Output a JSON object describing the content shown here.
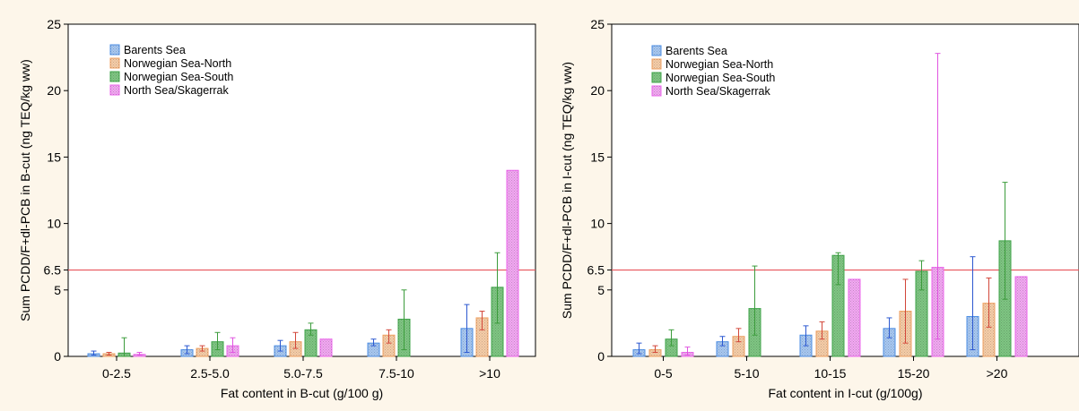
{
  "colors": {
    "background": "#fdf6ea",
    "plot_background": "#ffffff",
    "reference_line": "#e8545a",
    "series": [
      "#4d8fe6",
      "#f0a060",
      "#3fa54a",
      "#ee66ee"
    ],
    "series_fill": [
      "#a7c8f2",
      "#f6cda8",
      "#7fc683",
      "#f2a8f2"
    ],
    "error_bars": [
      "#2c58d0",
      "#d2473a",
      "#3c9c3c",
      "#e055e0"
    ]
  },
  "legend": [
    "Barents Sea",
    "Norwegian Sea-North",
    "Norwegian Sea-South",
    "North Sea/Skagerrak"
  ],
  "chart_data": [
    {
      "type": "bar",
      "xlabel": "Fat content in B-cut (g/100 g)",
      "ylabel": "Sum PCDD/F+dl-PCB in B-cut (ng TEQ/kg ww)",
      "ylim": [
        0,
        25
      ],
      "yticks": [
        "0",
        "5",
        "6.5",
        "10",
        "15",
        "20",
        "25"
      ],
      "reference_line": 6.5,
      "legend_position": "top-left",
      "grid": false,
      "categories": [
        "0-2.5",
        "2.5-5.0",
        "5.0-7.5",
        "7.5-10",
        ">10"
      ],
      "series": [
        {
          "name": "Barents Sea",
          "values": [
            0.2,
            0.5,
            0.8,
            1.0,
            2.1
          ],
          "error_low": [
            0.1,
            0.2,
            0.4,
            0.8,
            0.3
          ],
          "error_high": [
            0.4,
            0.8,
            1.2,
            1.3,
            3.9
          ]
        },
        {
          "name": "Norwegian Sea-North",
          "values": [
            0.2,
            0.6,
            1.1,
            1.6,
            2.9
          ],
          "error_low": [
            0.1,
            0.4,
            0.6,
            1.0,
            2.0
          ],
          "error_high": [
            0.3,
            0.8,
            1.8,
            2.0,
            3.4
          ]
        },
        {
          "name": "Norwegian Sea-South",
          "values": [
            0.25,
            1.1,
            2.0,
            2.8,
            5.2
          ],
          "error_low": [
            0.0,
            0.5,
            1.6,
            0.5,
            2.5
          ],
          "error_high": [
            1.4,
            1.8,
            2.5,
            5.0,
            7.8
          ]
        },
        {
          "name": "North Sea/Skagerrak",
          "values": [
            0.15,
            0.8,
            1.3,
            null,
            14.0
          ],
          "error_low": [
            0.1,
            0.3,
            1.3,
            null,
            14.0
          ],
          "error_high": [
            0.3,
            1.4,
            1.3,
            null,
            14.0
          ]
        }
      ]
    },
    {
      "type": "bar",
      "xlabel": "Fat content in I-cut (g/100g)",
      "ylabel": "Sum PCDD/F+dl-PCB in I-cut (ng TEQ/kg ww)",
      "ylim": [
        0,
        25
      ],
      "yticks": [
        "0",
        "5",
        "6.5",
        "10",
        "15",
        "20",
        "25"
      ],
      "reference_line": 6.5,
      "legend_position": "top-left",
      "grid": false,
      "categories": [
        "0-5",
        "5-10",
        "10-15",
        "15-20",
        ">20"
      ],
      "series": [
        {
          "name": "Barents Sea",
          "values": [
            0.5,
            1.1,
            1.6,
            2.1,
            3.0
          ],
          "error_low": [
            0.2,
            0.8,
            0.8,
            1.4,
            0.5
          ],
          "error_high": [
            1.0,
            1.5,
            2.3,
            2.9,
            7.5
          ]
        },
        {
          "name": "Norwegian Sea-North",
          "values": [
            0.5,
            1.5,
            1.9,
            3.4,
            4.0
          ],
          "error_low": [
            0.3,
            1.1,
            1.3,
            1.0,
            2.2
          ],
          "error_high": [
            0.8,
            2.1,
            2.6,
            5.8,
            5.9
          ]
        },
        {
          "name": "Norwegian Sea-South",
          "values": [
            1.3,
            3.6,
            7.6,
            6.4,
            8.7
          ],
          "error_low": [
            0.8,
            1.6,
            5.4,
            5.0,
            4.3
          ],
          "error_high": [
            2.0,
            6.8,
            7.8,
            7.2,
            13.1
          ]
        },
        {
          "name": "North Sea/Skagerrak",
          "values": [
            0.3,
            null,
            5.8,
            6.7,
            6.0
          ],
          "error_low": [
            0.1,
            null,
            5.8,
            1.3,
            6.0
          ],
          "error_high": [
            0.7,
            null,
            5.8,
            22.8,
            6.0
          ]
        }
      ]
    }
  ]
}
